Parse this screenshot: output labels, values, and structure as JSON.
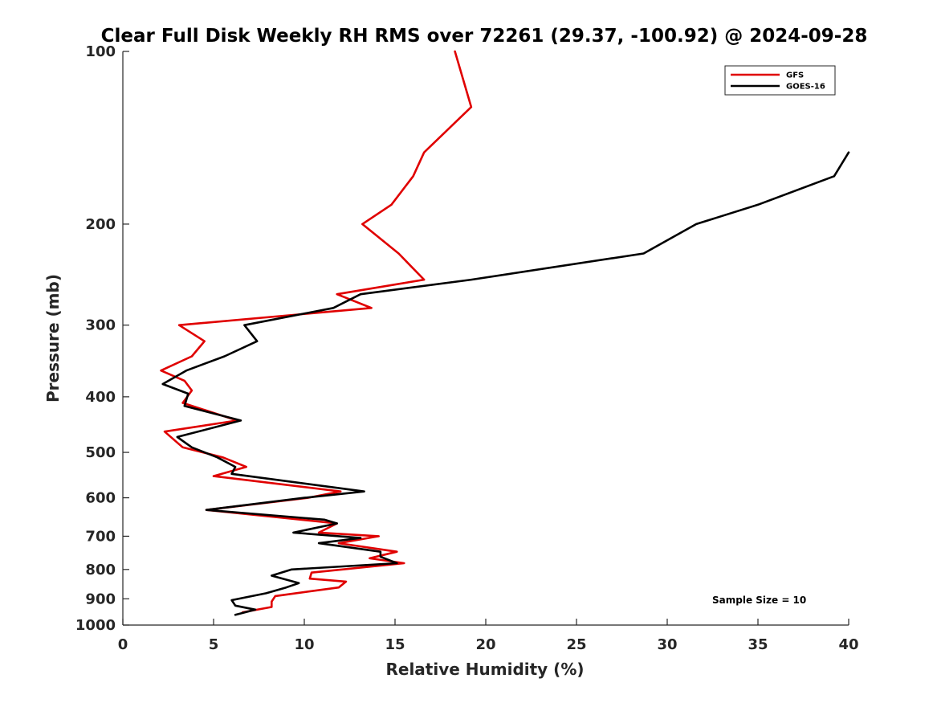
{
  "chart_data": {
    "type": "line",
    "title": "Clear Full Disk Weekly RH RMS over 72261 (29.37, -100.92) @ 2024-09-28",
    "xlabel": "Relative Humidity (%)",
    "ylabel": "Pressure (mb)",
    "xlim": [
      0,
      40
    ],
    "ylim": [
      100,
      1000
    ],
    "yscale": "log",
    "y_reversed": true,
    "grid": false,
    "legend_position": "top-right",
    "x_ticks": [
      0,
      5,
      10,
      15,
      20,
      25,
      30,
      35,
      40
    ],
    "y_ticks": [
      100,
      200,
      300,
      400,
      500,
      600,
      700,
      800,
      900,
      1000
    ],
    "annotation": "Sample Size = 10",
    "series": [
      {
        "name": "GFS",
        "color": "#e00000",
        "points": [
          [
            18.3,
            100
          ],
          [
            19.2,
            125
          ],
          [
            16.6,
            150
          ],
          [
            16.0,
            165
          ],
          [
            14.8,
            185
          ],
          [
            13.2,
            200
          ],
          [
            15.2,
            225
          ],
          [
            16.6,
            250
          ],
          [
            11.8,
            265
          ],
          [
            13.7,
            280
          ],
          [
            3.1,
            300
          ],
          [
            4.5,
            320
          ],
          [
            3.8,
            340
          ],
          [
            2.1,
            360
          ],
          [
            3.4,
            375
          ],
          [
            3.8,
            390
          ],
          [
            3.3,
            410
          ],
          [
            6.3,
            440
          ],
          [
            2.3,
            460
          ],
          [
            3.3,
            490
          ],
          [
            5.5,
            510
          ],
          [
            6.8,
            530
          ],
          [
            5.0,
            550
          ],
          [
            12.0,
            585
          ],
          [
            10.2,
            600
          ],
          [
            4.6,
            630
          ],
          [
            8.8,
            650
          ],
          [
            11.8,
            665
          ],
          [
            10.8,
            690
          ],
          [
            14.1,
            700
          ],
          [
            11.9,
            720
          ],
          [
            15.1,
            745
          ],
          [
            13.6,
            765
          ],
          [
            15.5,
            780
          ],
          [
            10.4,
            810
          ],
          [
            10.3,
            830
          ],
          [
            12.3,
            840
          ],
          [
            11.9,
            860
          ],
          [
            8.4,
            890
          ],
          [
            8.2,
            910
          ],
          [
            8.2,
            930
          ],
          [
            6.6,
            950
          ]
        ]
      },
      {
        "name": "GOES-16",
        "color": "#000000",
        "points": [
          [
            40.0,
            150
          ],
          [
            39.2,
            165
          ],
          [
            35.0,
            185
          ],
          [
            31.6,
            200
          ],
          [
            28.7,
            225
          ],
          [
            19.2,
            250
          ],
          [
            13.1,
            265
          ],
          [
            11.6,
            280
          ],
          [
            6.7,
            300
          ],
          [
            7.4,
            320
          ],
          [
            5.6,
            340
          ],
          [
            3.5,
            360
          ],
          [
            2.2,
            380
          ],
          [
            3.6,
            395
          ],
          [
            3.4,
            415
          ],
          [
            6.5,
            440
          ],
          [
            3.0,
            470
          ],
          [
            3.8,
            490
          ],
          [
            5.2,
            510
          ],
          [
            6.2,
            530
          ],
          [
            6.0,
            545
          ],
          [
            13.3,
            585
          ],
          [
            10.0,
            600
          ],
          [
            4.6,
            630
          ],
          [
            11.1,
            655
          ],
          [
            11.8,
            665
          ],
          [
            9.4,
            690
          ],
          [
            13.1,
            705
          ],
          [
            10.8,
            720
          ],
          [
            14.2,
            745
          ],
          [
            14.2,
            760
          ],
          [
            15.1,
            780
          ],
          [
            9.3,
            800
          ],
          [
            8.2,
            820
          ],
          [
            9.7,
            845
          ],
          [
            9.0,
            860
          ],
          [
            7.9,
            880
          ],
          [
            6.0,
            905
          ],
          [
            6.2,
            925
          ],
          [
            7.3,
            940
          ],
          [
            6.2,
            960
          ]
        ]
      }
    ]
  }
}
